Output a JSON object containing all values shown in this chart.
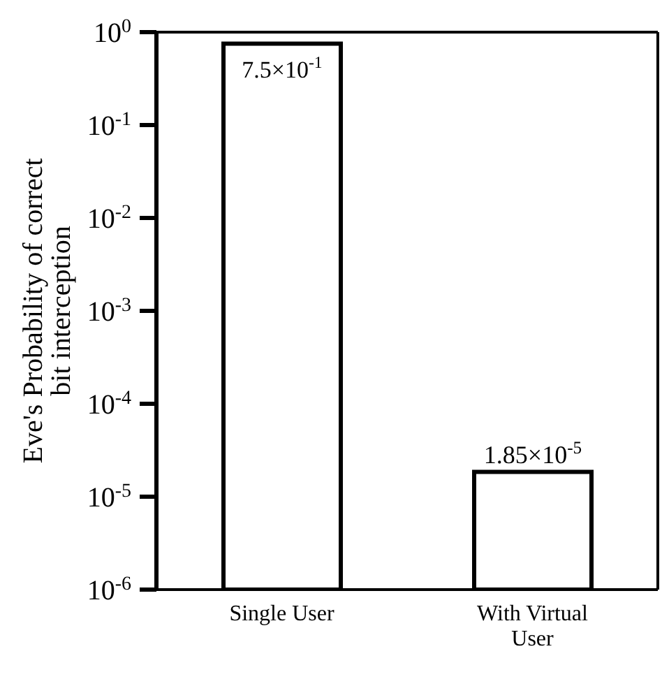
{
  "chart_data": {
    "type": "bar",
    "ylabel": "Eve's Probability of correct bit interception",
    "categories": [
      "Single User",
      "With Virtual User"
    ],
    "values": [
      0.75,
      1.85e-05
    ],
    "color": "#ffffff",
    "value_labels": [
      "7.5×10$^{-1}$",
      "1.85×10$^{-5}$"
    ],
    "log": true,
    "ylim": [
      1e-06,
      1
    ],
    "yticks": [
      {
        "value": 1e-06,
        "label": "10$^{-6}$"
      },
      {
        "value": 1e-05,
        "label": "10$^{-5}$"
      },
      {
        "value": 0.0001,
        "label": "10$^{-4}$"
      },
      {
        "value": 0.001,
        "label": "10$^{-3}$"
      },
      {
        "value": 0.01,
        "label": "10$^{-2}$"
      },
      {
        "value": 0.1,
        "label": "10$^{-1}$"
      },
      {
        "value": 1,
        "label": "10$^{0}$"
      }
    ],
    "grid": false,
    "legend": false
  }
}
